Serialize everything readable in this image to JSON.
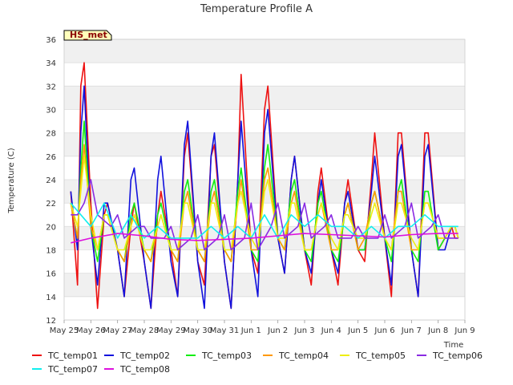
{
  "chart_data": {
    "type": "line",
    "title": "Temperature Profile A",
    "xlabel": "Time",
    "ylabel": "Temperature (C)",
    "ylim": [
      12,
      36
    ],
    "y_ticks": [
      12,
      14,
      16,
      18,
      20,
      22,
      24,
      26,
      28,
      30,
      32,
      34,
      36
    ],
    "xlim": [
      "2023-05-25",
      "2023-06-09"
    ],
    "x_ticks": [
      "May 25",
      "May 26",
      "May 27",
      "May 28",
      "May 29",
      "May 30",
      "May 31",
      "Jun 1",
      "Jun 2",
      "Jun 3",
      "Jun 4",
      "Jun 5",
      "Jun 6",
      "Jun 7",
      "Jun 8",
      "Jun 9"
    ],
    "grid": "horizontal bands",
    "legend_position": "bottom",
    "site_badge": "HS_met",
    "colors": {
      "TC_temp01": "#ee1111",
      "TC_temp02": "#1111dd",
      "TC_temp03": "#11ee11",
      "TC_temp04": "#ff9900",
      "TC_temp05": "#eeee11",
      "TC_temp06": "#8a2be2",
      "TC_temp07": "#11eeee",
      "TC_temp08": "#dd11dd"
    },
    "series": [
      {
        "name": "TC_temp01",
        "x": [
          "May 25 06:00",
          "May 25 12:00",
          "May 25 15:00",
          "May 25 18:00",
          "May 26 00:00",
          "May 26 06:00",
          "May 26 12:00",
          "May 26 15:00",
          "May 27 00:00",
          "May 27 06:00",
          "May 27 12:00",
          "May 27 15:00",
          "May 28 00:00",
          "May 28 06:00",
          "May 28 12:00",
          "May 28 15:00",
          "May 29 00:00",
          "May 29 06:00",
          "May 29 12:00",
          "May 29 15:00",
          "May 30 00:00",
          "May 30 06:00",
          "May 30 12:00",
          "May 30 15:00",
          "May 31 00:00",
          "May 31 06:00",
          "May 31 12:00",
          "May 31 15:00",
          "Jun 1 00:00",
          "Jun 1 06:00",
          "Jun 1 12:00",
          "Jun 1 15:00",
          "Jun 2 00:00",
          "Jun 2 06:00",
          "Jun 2 12:00",
          "Jun 2 15:00",
          "Jun 3 00:00",
          "Jun 3 06:00",
          "Jun 3 12:00",
          "Jun 3 15:00",
          "Jun 4 00:00",
          "Jun 4 06:00",
          "Jun 4 12:00",
          "Jun 4 15:00",
          "Jun 5 00:00",
          "Jun 5 06:00",
          "Jun 5 12:00",
          "Jun 5 15:00",
          "Jun 6 00:00",
          "Jun 6 06:00",
          "Jun 6 12:00",
          "Jun 6 15:00",
          "Jun 7 00:00",
          "Jun 7 06:00",
          "Jun 7 12:00",
          "Jun 7 15:00",
          "Jun 8 00:00",
          "Jun 8 06:00",
          "Jun 8 12:00",
          "Jun 8 15:00",
          "Jun 8 18:00"
        ],
        "values": [
          23,
          15,
          32,
          34,
          22,
          13,
          21,
          22,
          18,
          14,
          20,
          22,
          17,
          13,
          21,
          23,
          18,
          14,
          26,
          28,
          17,
          15,
          26,
          27,
          17,
          13,
          24,
          33,
          18,
          16,
          30,
          32,
          19,
          16,
          24,
          26,
          18,
          15,
          23,
          25,
          18,
          15,
          22,
          24,
          18,
          17,
          24,
          28,
          19,
          14,
          28,
          28,
          18,
          14,
          28,
          28,
          18,
          19,
          20,
          19,
          19
        ]
      },
      {
        "name": "TC_temp02",
        "x": [
          "May 25 06:00",
          "May 25 12:00",
          "May 25 15:00",
          "May 25 18:00",
          "May 26 00:00",
          "May 26 06:00",
          "May 26 12:00",
          "May 26 15:00",
          "May 27 00:00",
          "May 27 06:00",
          "May 27 12:00",
          "May 27 15:00",
          "May 28 00:00",
          "May 28 06:00",
          "May 28 12:00",
          "May 28 15:00",
          "May 29 00:00",
          "May 29 06:00",
          "May 29 12:00",
          "May 29 15:00",
          "May 30 00:00",
          "May 30 06:00",
          "May 30 12:00",
          "May 30 15:00",
          "May 31 00:00",
          "May 31 06:00",
          "May 31 12:00",
          "May 31 15:00",
          "Jun 1 00:00",
          "Jun 1 06:00",
          "Jun 1 12:00",
          "Jun 1 15:00",
          "Jun 2 00:00",
          "Jun 2 06:00",
          "Jun 2 12:00",
          "Jun 2 15:00",
          "Jun 3 00:00",
          "Jun 3 06:00",
          "Jun 3 12:00",
          "Jun 3 15:00",
          "Jun 4 00:00",
          "Jun 4 06:00",
          "Jun 4 12:00",
          "Jun 4 15:00",
          "Jun 5 00:00",
          "Jun 5 06:00",
          "Jun 5 12:00",
          "Jun 5 15:00",
          "Jun 6 00:00",
          "Jun 6 06:00",
          "Jun 6 12:00",
          "Jun 6 15:00",
          "Jun 7 00:00",
          "Jun 7 06:00",
          "Jun 7 12:00",
          "Jun 7 15:00",
          "Jun 8 00:00",
          "Jun 8 06:00",
          "Jun 8 12:00",
          "Jun 8 15:00",
          "Jun 8 18:00"
        ],
        "values": [
          23,
          18,
          28,
          32,
          20,
          15,
          22,
          22,
          18,
          14,
          24,
          25,
          17,
          13,
          24,
          26,
          17,
          14,
          27,
          29,
          17,
          13,
          26,
          28,
          17,
          13,
          24,
          29,
          18,
          14,
          28,
          30,
          19,
          16,
          24,
          26,
          18,
          16,
          22,
          24,
          18,
          16,
          22,
          23,
          18,
          18,
          23,
          26,
          19,
          15,
          26,
          27,
          18,
          14,
          26,
          27,
          18,
          18,
          20,
          20,
          19
        ]
      },
      {
        "name": "TC_temp03",
        "x": [
          "May 25 06:00",
          "May 25 12:00",
          "May 25 15:00",
          "May 25 18:00",
          "May 26 00:00",
          "May 26 06:00",
          "May 26 12:00",
          "May 26 15:00",
          "May 27 00:00",
          "May 27 06:00",
          "May 27 12:00",
          "May 27 15:00",
          "May 28 00:00",
          "May 28 06:00",
          "May 28 12:00",
          "May 28 15:00",
          "May 29 00:00",
          "May 29 06:00",
          "May 29 12:00",
          "May 29 15:00",
          "May 30 00:00",
          "May 30 06:00",
          "May 30 12:00",
          "May 30 15:00",
          "May 31 00:00",
          "May 31 06:00",
          "May 31 12:00",
          "May 31 15:00",
          "Jun 1 00:00",
          "Jun 1 06:00",
          "Jun 1 12:00",
          "Jun 1 15:00",
          "Jun 2 00:00",
          "Jun 2 06:00",
          "Jun 2 12:00",
          "Jun 2 15:00",
          "Jun 3 00:00",
          "Jun 3 06:00",
          "Jun 3 12:00",
          "Jun 3 15:00",
          "Jun 4 00:00",
          "Jun 4 06:00",
          "Jun 4 12:00",
          "Jun 4 15:00",
          "Jun 5 00:00",
          "Jun 5 06:00",
          "Jun 5 12:00",
          "Jun 5 15:00",
          "Jun 6 00:00",
          "Jun 6 06:00",
          "Jun 6 12:00",
          "Jun 6 15:00",
          "Jun 7 00:00",
          "Jun 7 06:00",
          "Jun 7 12:00",
          "Jun 7 15:00",
          "Jun 8 00:00",
          "Jun 8 06:00",
          "Jun 8 12:00",
          "Jun 8 15:00",
          "Jun 8 18:00"
        ],
        "values": [
          22,
          19,
          25,
          29,
          20,
          17,
          21,
          21,
          18,
          17,
          21,
          22,
          18,
          17,
          21,
          22,
          18,
          17,
          23,
          24,
          18,
          17,
          23,
          24,
          18,
          17,
          23,
          25,
          18,
          17,
          25,
          27,
          19,
          18,
          23,
          24,
          18,
          17,
          22,
          23,
          18,
          17,
          21,
          22,
          18,
          18,
          22,
          23,
          19,
          17,
          23,
          24,
          18,
          17,
          23,
          23,
          18,
          19,
          20,
          20,
          19
        ]
      },
      {
        "name": "TC_temp04",
        "x": [
          "May 25 06:00",
          "May 25 12:00",
          "May 25 15:00",
          "May 25 18:00",
          "May 26 00:00",
          "May 26 06:00",
          "May 26 12:00",
          "May 26 15:00",
          "May 27 00:00",
          "May 27 06:00",
          "May 27 12:00",
          "May 27 15:00",
          "May 28 00:00",
          "May 28 06:00",
          "May 28 12:00",
          "May 28 15:00",
          "May 29 00:00",
          "May 29 06:00",
          "May 29 12:00",
          "May 29 15:00",
          "May 30 00:00",
          "May 30 06:00",
          "May 30 12:00",
          "May 30 15:00",
          "May 31 00:00",
          "May 31 06:00",
          "May 31 12:00",
          "May 31 15:00",
          "Jun 1 00:00",
          "Jun 1 06:00",
          "Jun 1 12:00",
          "Jun 1 15:00",
          "Jun 2 00:00",
          "Jun 2 06:00",
          "Jun 2 12:00",
          "Jun 2 15:00",
          "Jun 3 00:00",
          "Jun 3 06:00",
          "Jun 3 12:00",
          "Jun 3 15:00",
          "Jun 4 00:00",
          "Jun 4 06:00",
          "Jun 4 12:00",
          "Jun 4 15:00",
          "Jun 5 00:00",
          "Jun 5 06:00",
          "Jun 5 12:00",
          "Jun 5 15:00",
          "Jun 6 00:00",
          "Jun 6 06:00",
          "Jun 6 12:00",
          "Jun 6 15:00",
          "Jun 7 00:00",
          "Jun 7 06:00",
          "Jun 7 12:00",
          "Jun 7 15:00",
          "Jun 8 00:00",
          "Jun 8 06:00",
          "Jun 8 12:00",
          "Jun 8 15:00",
          "Jun 8 18:00"
        ],
        "values": [
          22,
          19,
          24,
          27,
          20,
          18,
          21,
          21,
          18,
          17,
          20,
          21,
          18,
          17,
          20,
          21,
          18,
          17,
          22,
          23,
          18,
          17,
          22,
          23,
          18,
          17,
          22,
          24,
          18,
          18,
          24,
          25,
          19,
          18,
          22,
          23,
          18,
          18,
          21,
          22,
          18,
          18,
          21,
          22,
          18,
          19,
          22,
          23,
          19,
          18,
          23,
          23,
          18,
          18,
          22,
          22,
          19,
          19,
          20,
          20,
          19
        ]
      },
      {
        "name": "TC_temp05",
        "x": [
          "May 25 06:00",
          "May 25 12:00",
          "May 25 15:00",
          "May 25 18:00",
          "May 26 00:00",
          "May 26 06:00",
          "May 26 12:00",
          "May 26 15:00",
          "May 27 00:00",
          "May 27 06:00",
          "May 27 12:00",
          "May 27 15:00",
          "May 28 00:00",
          "May 28 06:00",
          "May 28 12:00",
          "May 28 15:00",
          "May 29 00:00",
          "May 29 06:00",
          "May 29 12:00",
          "May 29 15:00",
          "May 30 00:00",
          "May 30 06:00",
          "May 30 12:00",
          "May 30 15:00",
          "May 31 00:00",
          "May 31 06:00",
          "May 31 12:00",
          "May 31 15:00",
          "Jun 1 00:00",
          "Jun 1 06:00",
          "Jun 1 12:00",
          "Jun 1 15:00",
          "Jun 2 00:00",
          "Jun 2 06:00",
          "Jun 2 12:00",
          "Jun 2 15:00",
          "Jun 3 00:00",
          "Jun 3 06:00",
          "Jun 3 12:00",
          "Jun 3 15:00",
          "Jun 4 00:00",
          "Jun 4 06:00",
          "Jun 4 12:00",
          "Jun 4 15:00",
          "Jun 5 00:00",
          "Jun 5 06:00",
          "Jun 5 12:00",
          "Jun 5 15:00",
          "Jun 6 00:00",
          "Jun 6 06:00",
          "Jun 6 12:00",
          "Jun 6 15:00",
          "Jun 7 00:00",
          "Jun 7 06:00",
          "Jun 7 12:00",
          "Jun 7 15:00",
          "Jun 8 00:00",
          "Jun 8 06:00",
          "Jun 8 12:00",
          "Jun 8 15:00",
          "Jun 8 18:00"
        ],
        "values": [
          22,
          20,
          23,
          26,
          21,
          18,
          21,
          21,
          18,
          18,
          20,
          21,
          18,
          18,
          20,
          21,
          18,
          18,
          22,
          22,
          18,
          18,
          22,
          22,
          18,
          18,
          22,
          23,
          19,
          18,
          23,
          24,
          19,
          19,
          22,
          22,
          18,
          18,
          21,
          22,
          19,
          18,
          21,
          21,
          19,
          19,
          21,
          22,
          19,
          18,
          22,
          22,
          19,
          18,
          22,
          22,
          19,
          19,
          20,
          20,
          19
        ]
      },
      {
        "name": "TC_temp06",
        "x": [
          "May 25 06:00",
          "May 25 12:00",
          "May 25 18:00",
          "May 26 00:00",
          "May 26 06:00",
          "May 26 18:00",
          "May 27 00:00",
          "May 27 06:00",
          "May 27 18:00",
          "May 28 00:00",
          "May 28 06:00",
          "May 28 18:00",
          "May 29 00:00",
          "May 29 06:00",
          "May 29 18:00",
          "May 30 00:00",
          "May 30 06:00",
          "May 30 18:00",
          "May 31 00:00",
          "May 31 06:00",
          "May 31 18:00",
          "Jun 1 00:00",
          "Jun 1 06:00",
          "Jun 1 18:00",
          "Jun 2 00:00",
          "Jun 2 06:00",
          "Jun 2 18:00",
          "Jun 3 00:00",
          "Jun 3 06:00",
          "Jun 3 18:00",
          "Jun 4 00:00",
          "Jun 4 06:00",
          "Jun 4 18:00",
          "Jun 5 00:00",
          "Jun 5 06:00",
          "Jun 5 18:00",
          "Jun 6 00:00",
          "Jun 6 06:00",
          "Jun 6 18:00",
          "Jun 7 00:00",
          "Jun 7 06:00",
          "Jun 7 18:00",
          "Jun 8 00:00",
          "Jun 8 06:00",
          "Jun 8 18:00"
        ],
        "values": [
          21,
          21,
          22,
          24,
          21,
          20,
          21,
          19,
          20,
          20,
          19,
          19,
          20,
          18,
          19,
          21,
          18,
          19,
          21,
          18,
          19,
          22,
          18,
          20,
          22,
          19,
          20,
          22,
          19,
          20,
          21,
          19,
          19,
          20,
          19,
          19,
          21,
          19,
          20,
          22,
          19,
          20,
          21,
          19,
          19
        ]
      },
      {
        "name": "TC_temp07",
        "x": [
          "May 25 06:00",
          "May 26 00:00",
          "May 26 12:00",
          "May 27 00:00",
          "May 27 12:00",
          "May 28 00:00",
          "May 28 12:00",
          "May 29 00:00",
          "May 29 12:00",
          "May 30 00:00",
          "May 30 12:00",
          "May 31 00:00",
          "May 31 12:00",
          "Jun 1 00:00",
          "Jun 1 12:00",
          "Jun 2 00:00",
          "Jun 2 12:00",
          "Jun 3 00:00",
          "Jun 3 12:00",
          "Jun 4 00:00",
          "Jun 4 12:00",
          "Jun 5 00:00",
          "Jun 5 12:00",
          "Jun 6 00:00",
          "Jun 6 12:00",
          "Jun 7 00:00",
          "Jun 7 12:00",
          "Jun 8 00:00",
          "Jun 8 12:00",
          "Jun 8 18:00"
        ],
        "values": [
          22,
          20,
          22,
          19,
          21,
          19,
          20,
          19,
          19,
          19,
          20,
          19,
          20,
          19,
          21,
          19,
          21,
          20,
          21,
          20,
          20,
          19,
          20,
          19,
          20,
          20,
          21,
          20,
          20,
          20
        ]
      },
      {
        "name": "TC_temp08",
        "x": [
          "May 25 06:00",
          "May 26 00:00",
          "May 27 00:00",
          "May 28 00:00",
          "May 29 00:00",
          "May 30 00:00",
          "May 31 00:00",
          "Jun 1 00:00",
          "Jun 2 00:00",
          "Jun 3 00:00",
          "Jun 4 00:00",
          "Jun 5 00:00",
          "Jun 6 00:00",
          "Jun 7 00:00",
          "Jun 8 00:00",
          "Jun 8 18:00"
        ],
        "values": [
          18.6,
          19.0,
          19.4,
          19.2,
          18.9,
          18.8,
          18.9,
          19.0,
          19.2,
          19.4,
          19.3,
          19.2,
          19.1,
          19.3,
          19.4,
          19.4
        ]
      }
    ]
  }
}
